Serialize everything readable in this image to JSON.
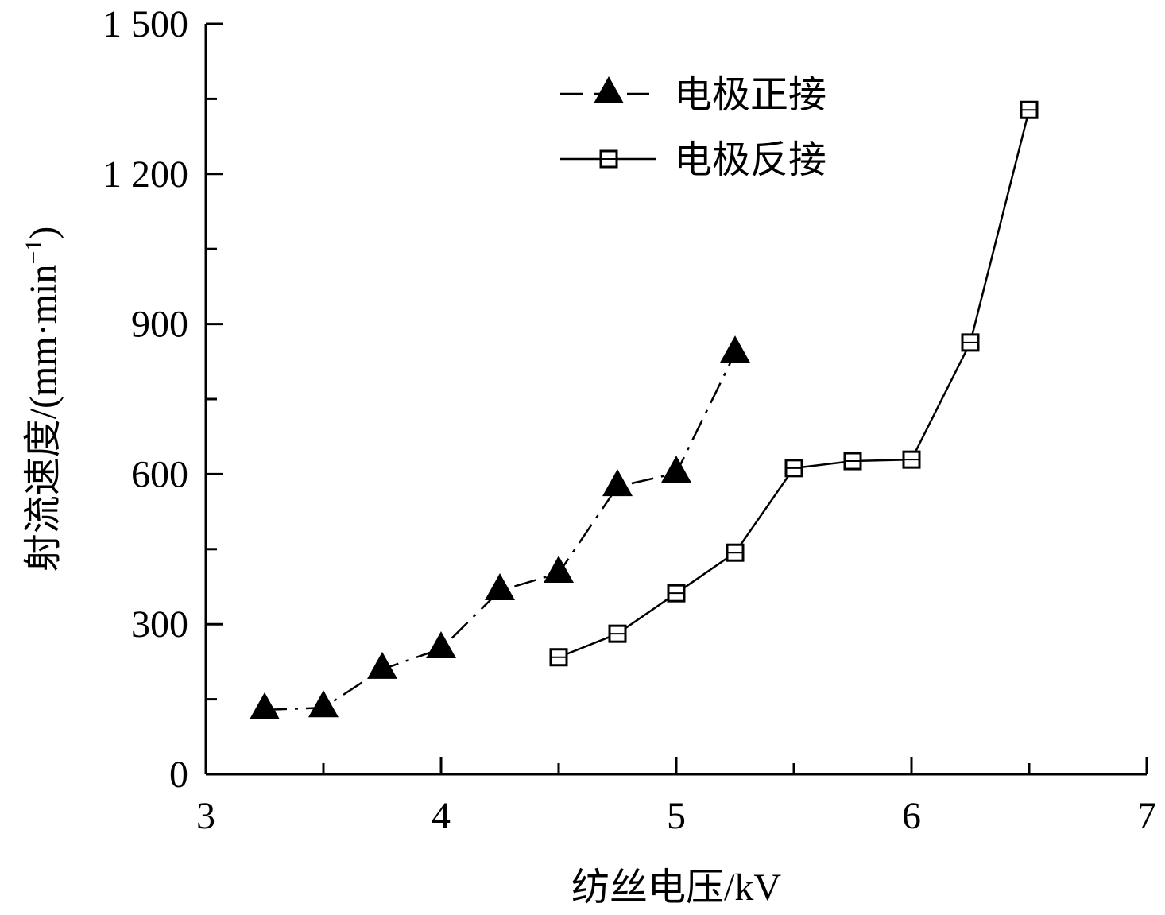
{
  "chart_data": {
    "type": "line",
    "title": "",
    "xlabel": "纺丝电压/kV",
    "ylabel": {
      "main": "射流速度/(mm·min",
      "sup": "−1",
      "end": ")"
    },
    "xlim": [
      3,
      7
    ],
    "ylim": [
      0,
      1500
    ],
    "xticks": [
      3,
      4,
      5,
      6,
      7
    ],
    "xtick_labels": [
      "3",
      "4",
      "5",
      "6",
      "7"
    ],
    "yticks": [
      0,
      300,
      600,
      900,
      1200,
      1500
    ],
    "ytick_labels": [
      "0",
      "300",
      "600",
      "900",
      "1 200",
      "1 500"
    ],
    "grid": false,
    "legend_position": "top-right",
    "series": [
      {
        "name": "电极正接",
        "marker": "triangle-filled",
        "line": "dash-dot",
        "x": [
          3.25,
          3.5,
          3.75,
          4.0,
          4.25,
          4.5,
          4.75,
          5.0,
          5.25
        ],
        "y": [
          129,
          133,
          210,
          251,
          367,
          402,
          575,
          602,
          842
        ]
      },
      {
        "name": "电极反接",
        "marker": "square-open",
        "line": "solid",
        "x": [
          4.5,
          4.75,
          5.0,
          5.25,
          5.5,
          5.75,
          6.0,
          6.25,
          6.5
        ],
        "y": [
          234,
          281,
          362,
          443,
          612,
          626,
          629,
          863,
          1328
        ]
      }
    ]
  }
}
